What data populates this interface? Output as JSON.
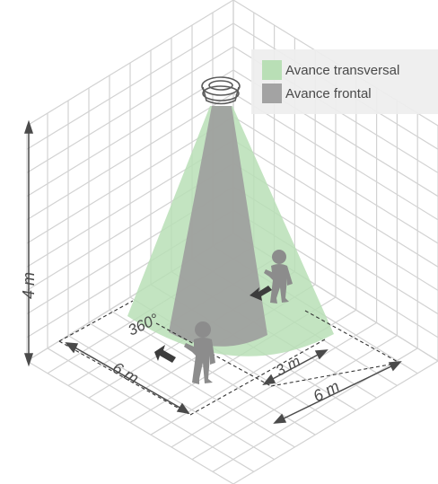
{
  "legend": {
    "items": [
      {
        "label": "Avance transversal",
        "color": "#b9dfb6"
      },
      {
        "label": "Avance frontal",
        "color": "#a3a3a3"
      }
    ]
  },
  "dimensions": {
    "height": "4 m",
    "width_left": "6 m",
    "width_right": "6 m",
    "walk_distance": "3 m",
    "angle": "360°"
  },
  "colors": {
    "grid": "#d2d2d2",
    "cone_transversal": "#b9dfb6",
    "cone_frontal": "#9d9d9d",
    "person": "#8c8c8c",
    "arrow": "#3c3c3c",
    "dimension_line": "#4a4a4a"
  },
  "icons": [
    "ceiling-sensor-icon",
    "person-icon",
    "walk-arrow-icon"
  ]
}
